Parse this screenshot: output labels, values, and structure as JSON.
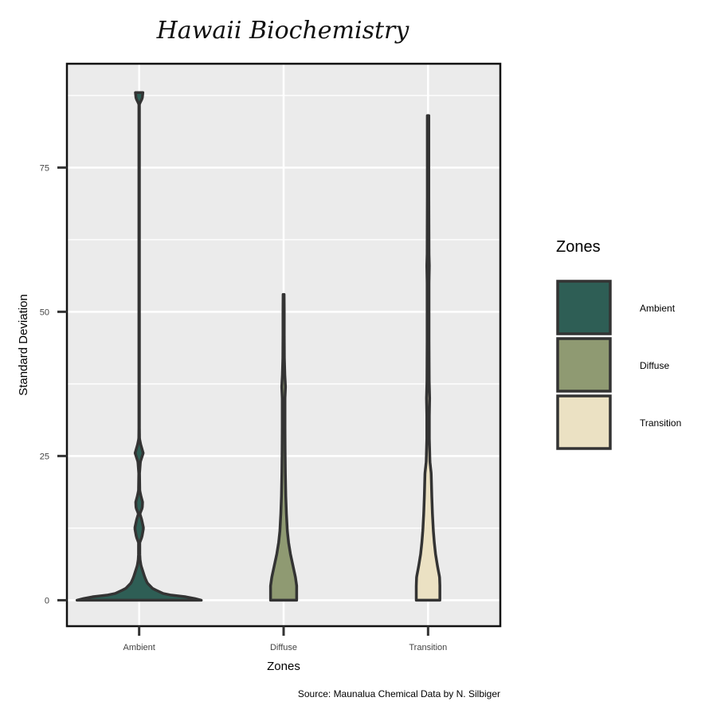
{
  "chart_data": {
    "type": "violin",
    "title": "Hawaii Biochemistry",
    "xlabel": "Zones",
    "ylabel": "Standard Deviation",
    "caption": "Source: Maunalua Chemical Data by N. Silbiger",
    "categories": [
      "Ambient",
      "Diffuse",
      "Transition"
    ],
    "y_ticks": [
      0,
      25,
      50,
      75
    ],
    "ylim": [
      -4.5,
      93
    ],
    "grid": true,
    "legend": {
      "title": "Zones",
      "position": "right"
    },
    "series": [
      {
        "category": "Ambient",
        "color": "#2e5e55",
        "min": 0,
        "max": 88,
        "density": [
          [
            0,
            1.0
          ],
          [
            0.5,
            0.82
          ],
          [
            1,
            0.42
          ],
          [
            2,
            0.22
          ],
          [
            3,
            0.13
          ],
          [
            4,
            0.09
          ],
          [
            5,
            0.06
          ],
          [
            6,
            0.03
          ],
          [
            7,
            0.015
          ],
          [
            8,
            0.01
          ],
          [
            10,
            0.01
          ],
          [
            11,
            0.045
          ],
          [
            12.5,
            0.07
          ],
          [
            14,
            0.04
          ],
          [
            15,
            0.012
          ],
          [
            16,
            0.05
          ],
          [
            17,
            0.055
          ],
          [
            18,
            0.03
          ],
          [
            19,
            0.01
          ],
          [
            22,
            0.006
          ],
          [
            24,
            0.02
          ],
          [
            25.5,
            0.065
          ],
          [
            27,
            0.025
          ],
          [
            28,
            0.006
          ],
          [
            30,
            0.004
          ],
          [
            50,
            0.004
          ],
          [
            75,
            0.004
          ],
          [
            86,
            0.004
          ],
          [
            87,
            0.05
          ],
          [
            88,
            0.06
          ]
        ]
      },
      {
        "category": "Diffuse",
        "color": "#8f9a72",
        "min": 0,
        "max": 53,
        "density": [
          [
            0,
            0.21
          ],
          [
            2.5,
            0.21
          ],
          [
            4,
            0.19
          ],
          [
            6,
            0.15
          ],
          [
            8,
            0.11
          ],
          [
            10,
            0.08
          ],
          [
            12,
            0.06
          ],
          [
            15,
            0.045
          ],
          [
            18,
            0.035
          ],
          [
            22,
            0.028
          ],
          [
            26,
            0.024
          ],
          [
            30,
            0.022
          ],
          [
            35,
            0.022
          ],
          [
            37,
            0.03
          ],
          [
            39,
            0.02
          ],
          [
            42,
            0.012
          ],
          [
            46,
            0.01
          ],
          [
            50,
            0.01
          ],
          [
            53,
            0.008
          ]
        ]
      },
      {
        "category": "Transition",
        "color": "#ebe1c3",
        "min": 0,
        "max": 84,
        "density": [
          [
            0,
            0.19
          ],
          [
            2.5,
            0.19
          ],
          [
            4,
            0.185
          ],
          [
            6,
            0.15
          ],
          [
            8,
            0.12
          ],
          [
            10,
            0.1
          ],
          [
            12,
            0.085
          ],
          [
            15,
            0.07
          ],
          [
            18,
            0.06
          ],
          [
            20,
            0.055
          ],
          [
            22,
            0.05
          ],
          [
            24,
            0.03
          ],
          [
            28,
            0.02
          ],
          [
            32,
            0.02
          ],
          [
            35,
            0.025
          ],
          [
            38,
            0.018
          ],
          [
            45,
            0.015
          ],
          [
            55,
            0.015
          ],
          [
            58,
            0.02
          ],
          [
            60,
            0.015
          ],
          [
            70,
            0.012
          ],
          [
            80,
            0.012
          ],
          [
            84,
            0.012
          ]
        ]
      }
    ]
  }
}
